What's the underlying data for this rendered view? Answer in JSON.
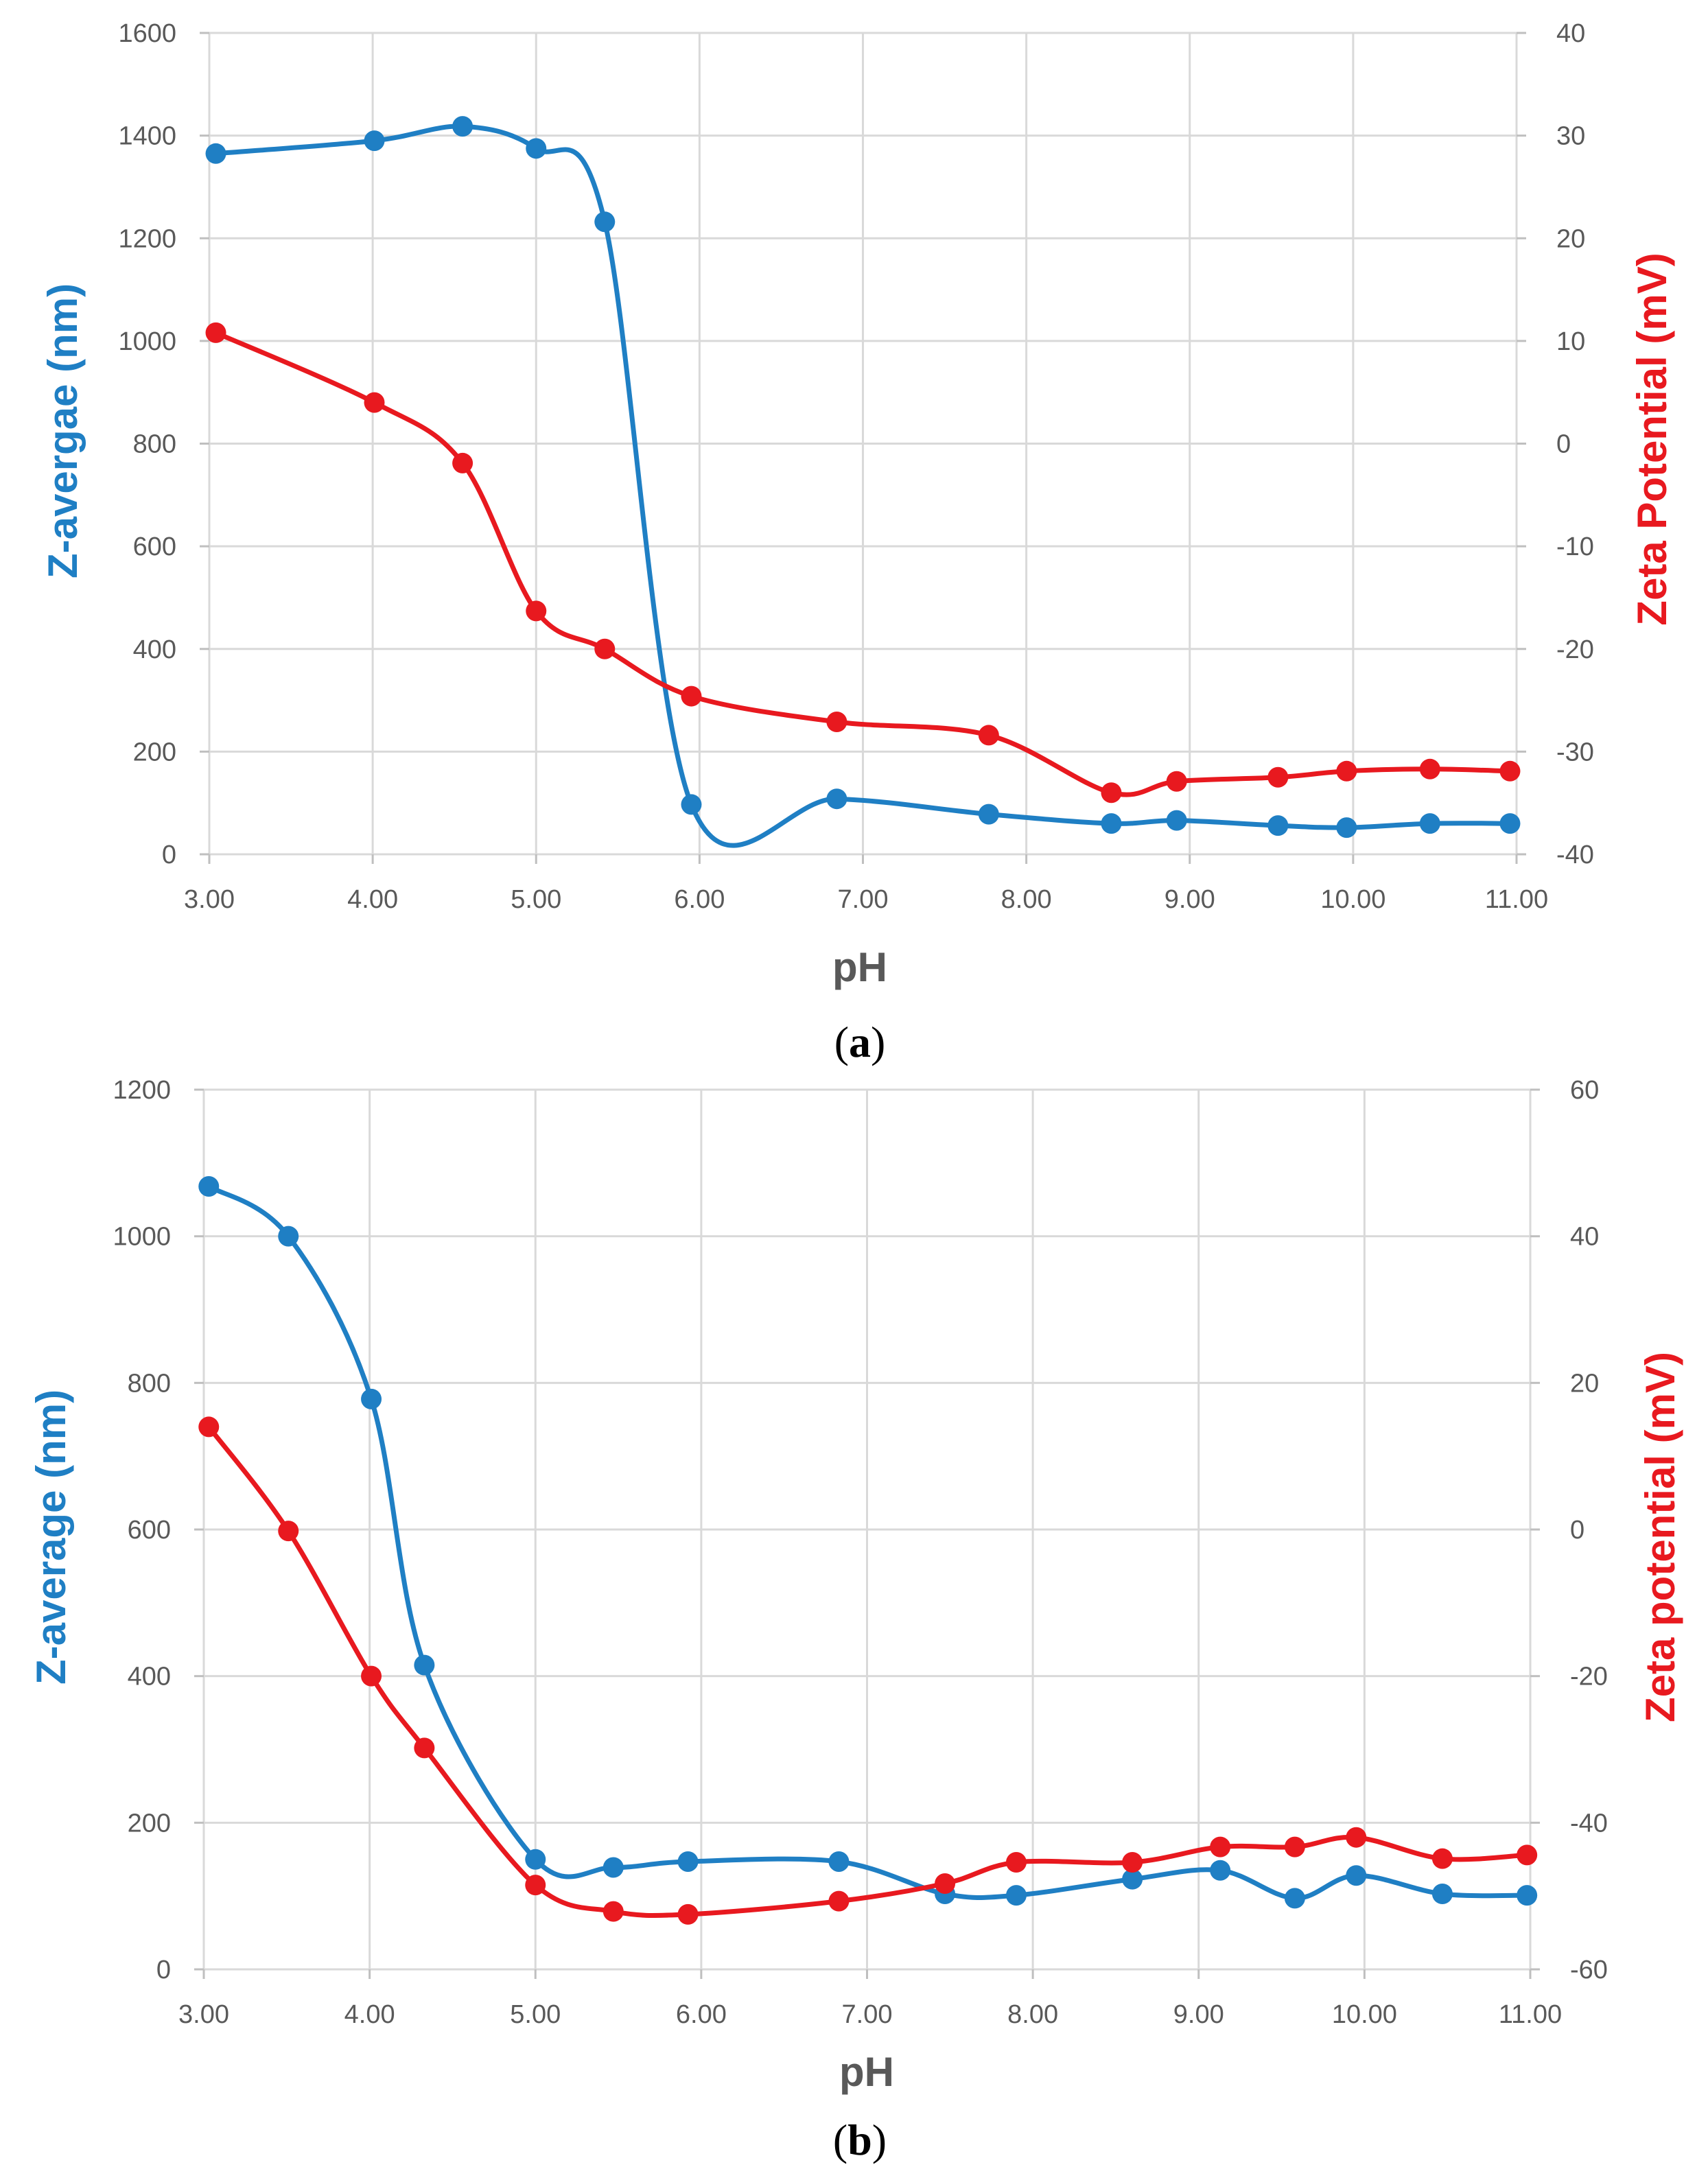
{
  "colors": {
    "zaverage": "#1f7fc4",
    "zeta": "#e8191f",
    "grid": "#d9d9d9",
    "tick_text": "#595959"
  },
  "chart_data": [
    {
      "type": "line",
      "caption_letter": "a",
      "xlabel": "pH",
      "ylabel_left": "Z-avergae (nm)",
      "ylabel_right": "Zeta Potential (mV)",
      "xlim": [
        3,
        11
      ],
      "ylim_left": [
        0,
        1600
      ],
      "ylim_right": [
        -40,
        40
      ],
      "x_ticks": [
        "3.00",
        "4.00",
        "5.00",
        "6.00",
        "7.00",
        "8.00",
        "9.00",
        "10.00",
        "11.00"
      ],
      "y_left_ticks": [
        "0",
        "200",
        "400",
        "600",
        "800",
        "1000",
        "1200",
        "1400",
        "1600"
      ],
      "y_right_ticks": [
        "-40",
        "-30",
        "-20",
        "-10",
        "0",
        "10",
        "20",
        "30",
        "40"
      ],
      "series": [
        {
          "name": "Z-average",
          "axis": "left",
          "color": "#1f7fc4",
          "x": [
            3.04,
            4.01,
            4.55,
            5.0,
            5.42,
            5.95,
            6.84,
            7.77,
            8.52,
            8.92,
            9.54,
            9.96,
            10.47,
            10.96
          ],
          "y": [
            1365,
            1390,
            1418,
            1375,
            1232,
            97,
            108,
            78,
            60,
            66,
            56,
            52,
            60,
            60
          ]
        },
        {
          "name": "Zeta potential",
          "axis": "right",
          "color": "#e8191f",
          "x": [
            3.04,
            4.01,
            4.55,
            5.0,
            5.42,
            5.95,
            6.84,
            7.77,
            8.52,
            8.92,
            9.54,
            9.96,
            10.47,
            10.96
          ],
          "y": [
            10.8,
            4.0,
            -1.9,
            -16.3,
            -20.0,
            -24.6,
            -27.1,
            -28.4,
            -34.0,
            -32.9,
            -32.5,
            -31.9,
            -31.7,
            -31.9
          ]
        }
      ]
    },
    {
      "type": "line",
      "caption_letter": "b",
      "xlabel": "pH",
      "ylabel_left": "Z-average (nm)",
      "ylabel_right": "Zeta potential (mV)",
      "xlim": [
        3,
        11
      ],
      "ylim_left": [
        0,
        1200
      ],
      "ylim_right": [
        -60,
        60
      ],
      "x_ticks": [
        "3.00",
        "4.00",
        "5.00",
        "6.00",
        "7.00",
        "8.00",
        "9.00",
        "10.00",
        "11.00"
      ],
      "y_left_ticks": [
        "0",
        "200",
        "400",
        "600",
        "800",
        "1000",
        "1200"
      ],
      "y_right_ticks": [
        "-60",
        "-40",
        "-20",
        "0",
        "20",
        "40",
        "60"
      ],
      "series": [
        {
          "name": "Z-average",
          "axis": "left",
          "color": "#1f7fc4",
          "x": [
            3.03,
            3.51,
            4.01,
            4.33,
            5.0,
            5.47,
            5.92,
            6.83,
            7.47,
            7.9,
            8.6,
            9.13,
            9.58,
            9.95,
            10.47,
            10.98
          ],
          "y": [
            1068,
            1000,
            778,
            415,
            150,
            139,
            147,
            147,
            103,
            101,
            123,
            135,
            97,
            128,
            103,
            101
          ]
        },
        {
          "name": "Zeta potential",
          "axis": "right",
          "color": "#e8191f",
          "x": [
            3.03,
            3.51,
            4.01,
            4.33,
            5.0,
            5.47,
            5.92,
            6.83,
            7.47,
            7.9,
            8.6,
            9.13,
            9.58,
            9.95,
            10.47,
            10.98
          ],
          "y": [
            14.0,
            -0.2,
            -20.0,
            -29.8,
            -48.5,
            -52.1,
            -52.5,
            -50.7,
            -48.3,
            -45.4,
            -45.4,
            -43.3,
            -43.3,
            -42.0,
            -44.9,
            -44.4
          ]
        }
      ]
    }
  ]
}
